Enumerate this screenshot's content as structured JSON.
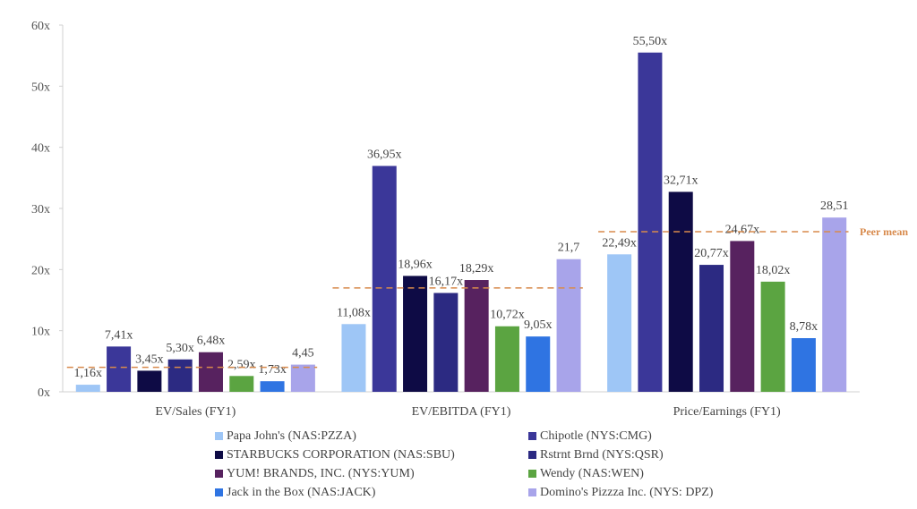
{
  "chart_data": {
    "type": "bar",
    "categories": [
      "EV/Sales (FY1)",
      "EV/EBITDA (FY1)",
      "Price/Earnings (FY1)"
    ],
    "ylim": [
      0,
      60
    ],
    "yticks": [
      "0x",
      "10x",
      "20x",
      "30x",
      "40x",
      "50x",
      "60x"
    ],
    "yvalues": [
      0,
      10,
      20,
      30,
      40,
      50,
      60
    ],
    "grid": false,
    "legend_position": "bottom",
    "series": [
      {
        "name": "Papa John's (NAS:PZZA)",
        "color": "#9ec6f6",
        "values": [
          1.16,
          11.08,
          22.49
        ],
        "labels": [
          "1,16x",
          "11,08x",
          "22,49x"
        ]
      },
      {
        "name": "Chipotle (NYS:CMG)",
        "color": "#3b3799",
        "values": [
          7.41,
          36.95,
          55.5
        ],
        "labels": [
          "7,41x",
          "36,95x",
          "55,50x"
        ]
      },
      {
        "name": "STARBUCKS CORPORATION (NAS:SBU)",
        "color": "#0e0b45",
        "values": [
          3.45,
          18.96,
          32.71
        ],
        "labels": [
          "3,45x",
          "18,96x",
          "32,71x"
        ]
      },
      {
        "name": "Rstrnt Brnd (NYS:QSR)",
        "color": "#2c2a82",
        "values": [
          5.3,
          16.17,
          20.77
        ],
        "labels": [
          "5,30x",
          "16,17x",
          "20,77x"
        ]
      },
      {
        "name": "YUM! BRANDS, INC. (NYS:YUM)",
        "color": "#57225f",
        "values": [
          6.48,
          18.29,
          24.67
        ],
        "labels": [
          "6,48x",
          "18,29x",
          "24,67x"
        ]
      },
      {
        "name": "Wendy (NAS:WEN)",
        "color": "#5ba441",
        "values": [
          2.59,
          10.72,
          18.02
        ],
        "labels": [
          "2,59x",
          "10,72x",
          "18,02x"
        ]
      },
      {
        "name": "Jack in the Box (NAS:JACK)",
        "color": "#2f74e2",
        "values": [
          1.73,
          9.05,
          8.78
        ],
        "labels": [
          "1,73x",
          "9,05x",
          "8,78x"
        ]
      },
      {
        "name": "Domino's Pizzza Inc. (NYS: DPZ)",
        "color": "#a8a4ea",
        "values": [
          4.45,
          21.7,
          28.51
        ],
        "labels": [
          "4,45",
          "21,7",
          "28,51"
        ]
      }
    ],
    "peer_mean": {
      "label": "Peer mean",
      "color": "#d88a4c",
      "values": [
        4.0,
        17.0,
        26.2
      ]
    }
  }
}
